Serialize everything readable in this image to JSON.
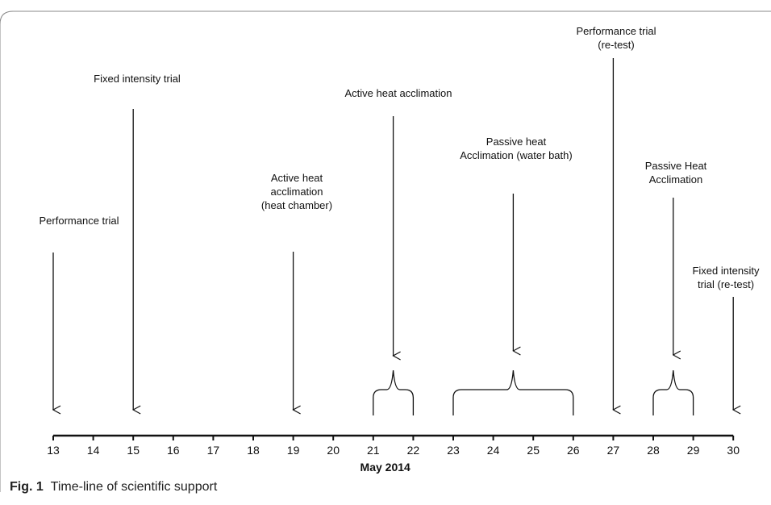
{
  "caption": {
    "label": "Fig. 1",
    "text": "Time-line of scientific support"
  },
  "axis": {
    "title": "May 2014",
    "days": [
      "13",
      "14",
      "15",
      "16",
      "17",
      "18",
      "19",
      "20",
      "21",
      "22",
      "23",
      "24",
      "25",
      "26",
      "27",
      "28",
      "29",
      "30"
    ]
  },
  "events": [
    {
      "day": 13,
      "lines": [
        "Performance trial"
      ]
    },
    {
      "day": 15,
      "lines": [
        "Fixed intensity trial"
      ]
    },
    {
      "day": 19,
      "lines": [
        "Active heat",
        "acclimation",
        "(heat chamber)"
      ]
    },
    {
      "day": 21.5,
      "lines": [
        "Active heat acclimation"
      ],
      "span": [
        21,
        22
      ]
    },
    {
      "day": 24.5,
      "lines": [
        "Passive heat",
        "Acclimation (water bath)"
      ],
      "span": [
        23,
        26
      ]
    },
    {
      "day": 27,
      "lines": [
        "Performance trial",
        "(re-test)"
      ]
    },
    {
      "day": 28.5,
      "lines": [
        "Passive Heat",
        "Acclimation"
      ],
      "span": [
        28,
        29
      ]
    },
    {
      "day": 30,
      "lines": [
        "Fixed intensity",
        "trial (re-test)"
      ]
    }
  ]
}
